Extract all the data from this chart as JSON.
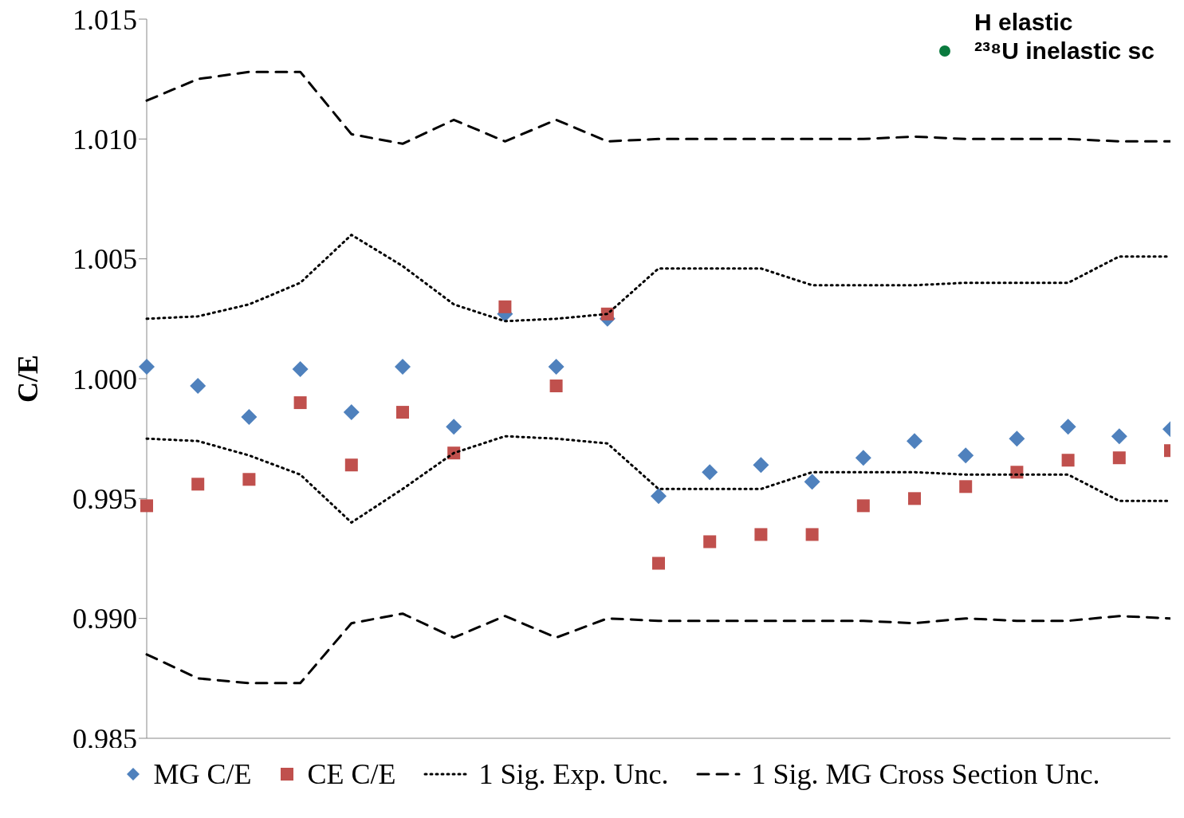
{
  "chart_data": {
    "type": "scatter",
    "ylabel": "C/E",
    "categories": [
      null,
      null,
      null,
      null,
      null,
      null,
      null,
      null,
      null,
      null,
      null,
      null,
      null,
      null,
      null,
      null,
      null,
      null,
      null,
      null,
      null
    ],
    "series": [
      {
        "name": "MG C/E",
        "marker": "diamond",
        "color": "#4f81bd",
        "values": [
          1.0005,
          0.9997,
          0.9984,
          1.0004,
          0.9986,
          1.0005,
          0.998,
          1.0027,
          1.0005,
          1.0025,
          0.9951,
          0.9961,
          0.9964,
          0.9957,
          0.9967,
          0.9974,
          0.9968,
          0.9975,
          0.998,
          0.9976,
          0.9979
        ]
      },
      {
        "name": "CE C/E",
        "marker": "square",
        "color": "#c0504d",
        "values": [
          0.9947,
          0.9956,
          0.9958,
          0.999,
          0.9964,
          0.9986,
          0.9969,
          1.003,
          0.9997,
          1.0027,
          0.9923,
          0.9932,
          0.9935,
          0.9935,
          0.9947,
          0.995,
          0.9955,
          0.9961,
          0.9966,
          0.9967,
          0.997
        ]
      },
      {
        "name": "1 Sig. Exp. Unc.",
        "type": "line",
        "line_style": "dotted",
        "color": "#000000",
        "values": [
          1.0025,
          1.0026,
          1.0031,
          1.004,
          1.006,
          1.0047,
          1.0031,
          1.0024,
          1.0025,
          1.0027,
          1.0046,
          1.0046,
          1.0046,
          1.0039,
          1.0039,
          1.0039,
          1.004,
          1.004,
          1.004,
          1.0051,
          1.0051
        ]
      },
      {
        "type": "line",
        "line_style": "dotted",
        "color": "#000000",
        "values": [
          0.9975,
          0.9974,
          0.9968,
          0.996,
          0.994,
          0.9954,
          0.9969,
          0.9976,
          0.9975,
          0.9973,
          0.9954,
          0.9954,
          0.9954,
          0.9961,
          0.9961,
          0.9961,
          0.996,
          0.996,
          0.996,
          0.9949,
          0.9949
        ]
      },
      {
        "name": "1 Sig. MG Cross Section Unc.",
        "type": "line",
        "line_style": "dashed",
        "color": "#000000",
        "values": [
          1.0116,
          1.0125,
          1.0128,
          1.0128,
          1.0102,
          1.0098,
          1.0108,
          1.0099,
          1.0108,
          1.0099,
          1.01,
          1.01,
          1.01,
          1.01,
          1.01,
          1.0101,
          1.01,
          1.01,
          1.01,
          1.0099,
          1.0099
        ]
      },
      {
        "type": "line",
        "line_style": "dashed",
        "color": "#000000",
        "values": [
          0.9885,
          0.9875,
          0.9873,
          0.9873,
          0.9898,
          0.9902,
          0.9892,
          0.9901,
          0.9892,
          0.99,
          0.9899,
          0.9899,
          0.9899,
          0.9899,
          0.9899,
          0.9898,
          0.99,
          0.9899,
          0.9899,
          0.9901,
          0.99
        ]
      }
    ],
    "ylim": [
      0.985,
      1.015
    ],
    "yticks": [
      0.985,
      {
        "value": 0.99,
        "label": "0.990"
      },
      0.995,
      {
        "value": 1.0,
        "label": "1.000"
      },
      1.005,
      {
        "value": 1.01,
        "label": "1.010"
      },
      1.015
    ],
    "tick_labels": "y",
    "legend": "bottom",
    "annotations": [
      "H elastic",
      "²³⁸U inelastic sc"
    ]
  }
}
